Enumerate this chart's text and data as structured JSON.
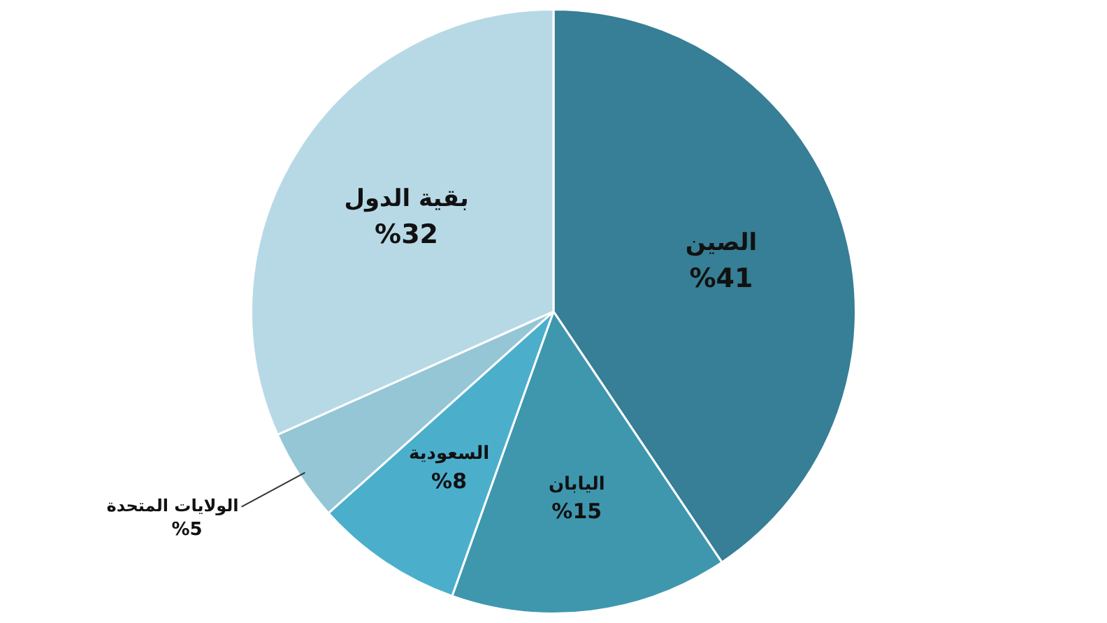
{
  "chart_data": {
    "type": "pie",
    "categories": [
      "الصين",
      "اليابان",
      "السعودية",
      "الولايات المتحدة",
      "بقية الدول"
    ],
    "values": [
      41,
      15,
      8,
      5,
      32
    ],
    "value_labels": [
      "%41",
      "%15",
      "%8",
      "%5",
      "%32"
    ],
    "colors": [
      "#367f96",
      "#3f97ae",
      "#4bafcc",
      "#94c6d6",
      "#b7d9e5"
    ],
    "legend": false
  }
}
